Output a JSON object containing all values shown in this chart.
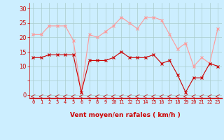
{
  "x": [
    0,
    1,
    2,
    3,
    4,
    5,
    6,
    7,
    8,
    9,
    10,
    11,
    12,
    13,
    14,
    15,
    16,
    17,
    18,
    19,
    20,
    21,
    22,
    23
  ],
  "wind_avg": [
    13,
    13,
    14,
    14,
    14,
    14,
    1,
    12,
    12,
    12,
    13,
    15,
    13,
    13,
    13,
    14,
    11,
    12,
    7,
    1,
    6,
    6,
    11,
    10
  ],
  "wind_gust": [
    21,
    21,
    24,
    24,
    24,
    19,
    1,
    21,
    20,
    22,
    24,
    27,
    25,
    23,
    27,
    27,
    26,
    21,
    16,
    18,
    10,
    13,
    11,
    23
  ],
  "wind_avg_color": "#cc0000",
  "wind_gust_color": "#ff9999",
  "bg_color": "#cceeff",
  "grid_color": "#aacccc",
  "xlabel": "Vent moyen/en rafales ( km/h )",
  "xlabel_color": "#cc0000",
  "ytick_labels": [
    "0",
    "",
    "10",
    "15",
    "20",
    "25",
    "30"
  ],
  "ytick_vals": [
    0,
    5,
    10,
    15,
    20,
    25,
    30
  ],
  "ylim": [
    -1,
    32
  ],
  "xlim": [
    -0.5,
    23.5
  ],
  "tick_color": "#cc0000",
  "marker_color_avg": "#cc0000",
  "marker_color_gust": "#ffaaaa"
}
